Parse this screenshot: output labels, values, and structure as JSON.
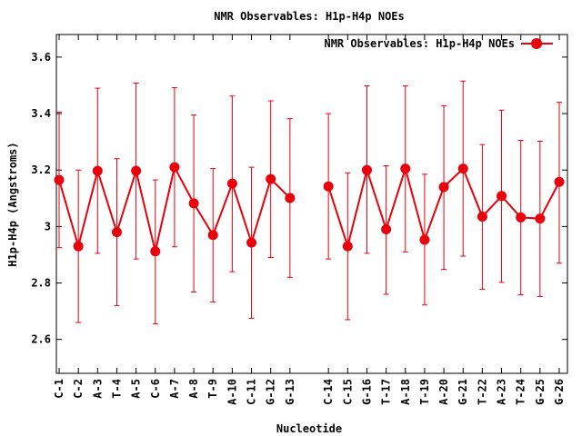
{
  "chart_data": {
    "type": "line",
    "title": "NMR Observables: H1p-H4p NOEs",
    "xlabel": "Nucleotide",
    "ylabel": "H1p-H4p (Angstroms)",
    "ylim": [
      2.48,
      3.68
    ],
    "yticks": [
      "2.6",
      "2.8",
      "3",
      "3.2",
      "3.4",
      "3.6"
    ],
    "ytick_values": [
      2.6,
      2.8,
      3.0,
      3.2,
      3.4,
      3.6
    ],
    "grid": false,
    "legend_position": "top-right",
    "series": [
      {
        "name": "NMR Observables: H1p-H4p NOEs",
        "color": "#e8000b",
        "marker": "circle",
        "error_bars": true,
        "segments": [
          {
            "categories": [
              "C-1",
              "C-2",
              "A-3",
              "T-4",
              "A-5",
              "C-6",
              "A-7",
              "A-8",
              "T-9",
              "A-10",
              "C-11",
              "G-12",
              "G-13"
            ],
            "values": [
              3.165,
              2.93,
              3.197,
              2.98,
              3.197,
              2.912,
              3.21,
              3.082,
              2.97,
              3.152,
              2.943,
              3.168,
              3.101
            ],
            "err_low": [
              2.925,
              2.66,
              2.905,
              2.72,
              2.885,
              2.655,
              2.928,
              2.768,
              2.733,
              2.84,
              2.675,
              2.89,
              2.82
            ],
            "err_high": [
              3.405,
              3.2,
              3.49,
              3.24,
              3.508,
              3.165,
              3.492,
              3.395,
              3.205,
              3.462,
              3.21,
              3.445,
              3.382
            ]
          },
          {
            "categories": [
              "C-14",
              "C-15",
              "G-16",
              "T-17",
              "A-18",
              "T-19",
              "A-20",
              "G-21",
              "T-22",
              "A-23",
              "T-24",
              "G-25",
              "G-26"
            ],
            "values": [
              3.142,
              2.93,
              3.2,
              2.99,
              3.205,
              2.953,
              3.14,
              3.205,
              3.035,
              3.108,
              3.032,
              3.028,
              3.158
            ],
            "err_low": [
              2.885,
              2.67,
              2.905,
              2.76,
              2.91,
              2.722,
              2.848,
              2.895,
              2.778,
              2.802,
              2.758,
              2.752,
              2.87
            ],
            "err_high": [
              3.4,
              3.19,
              3.498,
              3.215,
              3.498,
              3.185,
              3.428,
              3.515,
              3.29,
              3.412,
              3.305,
              3.302,
              3.44
            ]
          }
        ]
      }
    ]
  }
}
